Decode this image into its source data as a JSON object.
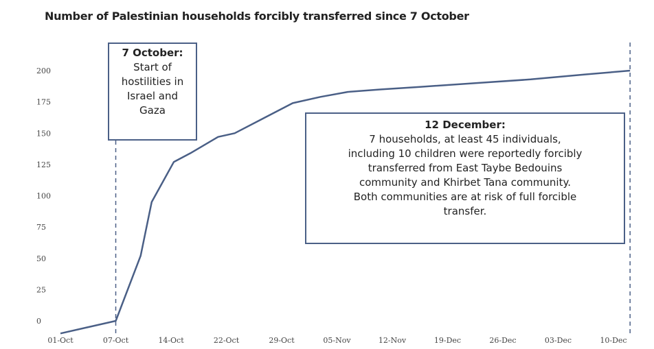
{
  "chart_data": {
    "type": "line",
    "title": "Number of Palestinian households forcibly transferred since 7 October",
    "xlabel": "",
    "ylabel": "",
    "ylim": [
      0,
      200
    ],
    "yticks": [
      0,
      25,
      50,
      75,
      100,
      125,
      150,
      175,
      200
    ],
    "xticks": [
      "01-Oct",
      "07-Oct",
      "14-Oct",
      "22-Oct",
      "29-Oct",
      "05-Nov",
      "12-Nov",
      "19-Dec",
      "26-Dec",
      "03-Dec",
      "10-Dec"
    ],
    "grid": false,
    "legend": "none",
    "line_color": "#4a5f86",
    "series": [
      {
        "x": [
          0,
          1,
          1.45,
          1.65,
          2.05,
          2.35,
          2.85,
          3.15,
          4.2,
          4.7,
          5.2,
          5.8,
          6.5,
          7.5,
          8.5,
          9.5,
          10.3
        ],
        "values": [
          -10,
          0,
          52,
          95,
          127,
          134,
          147,
          150,
          174,
          179,
          183,
          185,
          187,
          190,
          193,
          197,
          200
        ]
      }
    ],
    "reference_lines": [
      {
        "x": 1
      },
      {
        "x": 10.3
      }
    ],
    "annotations": [
      {
        "heading": "7 October:",
        "lines": [
          "Start of",
          "hostilities in",
          "Israel and",
          "Gaza"
        ]
      },
      {
        "heading": "12 December:",
        "lines": [
          "7 households, at least 45 individuals,",
          "including 10 children were reportedly forcibly",
          "transferred from East Taybe Bedouins",
          "community and Khirbet Tana community.",
          "Both communities are at risk of full forcible",
          "transfer."
        ]
      }
    ]
  }
}
